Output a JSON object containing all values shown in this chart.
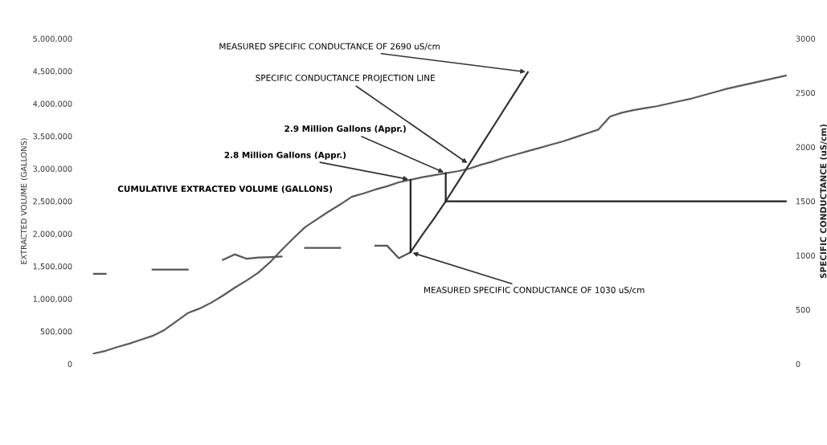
{
  "chart_data": {
    "type": "line",
    "ylabel": "EXTRACTED VOLUME (GALLONS)",
    "y2label": "SPECIFIC CONDUCTANCE (uS/cm)",
    "categories": [
      null,
      null,
      null,
      null,
      null,
      null,
      null,
      null,
      null,
      null,
      null,
      null,
      null,
      null,
      null,
      null,
      null,
      null,
      null,
      null,
      null,
      null,
      null,
      null,
      null,
      null,
      null,
      null,
      null,
      null,
      null,
      null,
      null,
      null,
      null,
      null,
      null,
      null,
      null,
      null,
      null,
      null,
      null,
      null,
      null,
      null,
      null,
      null,
      null,
      null,
      null,
      null,
      null,
      null,
      null,
      null,
      null,
      null,
      null,
      null,
      null
    ],
    "ylim": [
      0,
      5000000
    ],
    "yticks": [
      {
        "value": 0,
        "label": "0"
      },
      {
        "value": 500000,
        "label": "500,000"
      },
      {
        "value": 1000000,
        "label": "1,000,000"
      },
      {
        "value": 1500000,
        "label": "1,500,000"
      },
      {
        "value": 2000000,
        "label": "2,000,000"
      },
      {
        "value": 2500000,
        "label": "2,500,000"
      },
      {
        "value": 3000000,
        "label": "3,000,000"
      },
      {
        "value": 3500000,
        "label": "3,500,000"
      },
      {
        "value": 4000000,
        "label": "4,000,000"
      },
      {
        "value": 4500000,
        "label": "4,500,000"
      },
      {
        "value": 5000000,
        "label": "5,000,000"
      }
    ],
    "y2lim": [
      0,
      3000
    ],
    "y2ticks": [
      0,
      500,
      1000,
      1500,
      2000,
      2500,
      3000
    ],
    "grid": false,
    "legend": false,
    "series": [
      {
        "axis": "y",
        "color": "#5a5a5a",
        "values": [
          null,
          160000,
          200000,
          260000,
          310000,
          370000,
          430000,
          520000,
          650000,
          780000,
          850000,
          940000,
          1050000,
          1170000,
          1280000,
          1400000,
          1560000,
          1750000,
          1930000,
          2100000,
          2220000,
          2340000,
          2450000,
          2570000,
          2620000,
          2680000,
          2730000,
          2790000,
          2830000,
          2870000,
          2900000,
          2930000,
          2960000,
          3000000,
          3060000,
          3110000,
          3170000,
          3220000,
          3270000,
          3320000,
          3370000,
          3420000,
          3480000,
          3540000,
          3600000,
          3800000,
          3860000,
          3900000,
          3930000,
          3960000,
          4000000,
          4040000,
          4080000,
          4130000,
          4180000,
          4230000,
          4270000,
          4310000,
          4350000,
          4390000,
          4430000
        ]
      },
      {
        "axis": "y2",
        "color": "#555555",
        "values": [
          null,
          830,
          830,
          null,
          null,
          null,
          870,
          870,
          870,
          870,
          null,
          null,
          960,
          1010,
          970,
          980,
          985,
          990,
          null,
          1070,
          1070,
          1070,
          1070,
          null,
          null,
          1090,
          1090,
          975,
          1030,
          null,
          null,
          null,
          null,
          null,
          null,
          null,
          null,
          null,
          null,
          null,
          null,
          null,
          null,
          null,
          null,
          null,
          null,
          null,
          null,
          null,
          null,
          null,
          null,
          null,
          null,
          null,
          null,
          null,
          null,
          null,
          null
        ]
      },
      {
        "axis": "y2",
        "color": "#333333",
        "values": [
          null,
          null,
          null,
          null,
          null,
          null,
          null,
          null,
          null,
          null,
          null,
          null,
          null,
          null,
          null,
          null,
          null,
          null,
          null,
          null,
          null,
          null,
          null,
          null,
          null,
          null,
          null,
          null,
          1030,
          1190,
          1340,
          1500,
          1670,
          1840,
          2010,
          2180,
          2350,
          2520,
          2690,
          null,
          null,
          null,
          null,
          null,
          null,
          null,
          null,
          null,
          null,
          null,
          null,
          null,
          null,
          null,
          null,
          null,
          null,
          null,
          null,
          null,
          null
        ]
      },
      {
        "axis": "y2",
        "color": "#222222",
        "values": [
          null,
          null,
          null,
          null,
          null,
          null,
          null,
          null,
          null,
          null,
          null,
          null,
          null,
          null,
          null,
          null,
          null,
          null,
          null,
          null,
          null,
          null,
          null,
          null,
          null,
          null,
          null,
          null,
          null,
          null,
          null,
          1500,
          1500,
          1500,
          1500,
          1500,
          1500,
          1500,
          1500,
          1500,
          1500,
          1500,
          1500,
          1500,
          1500,
          1500,
          1500,
          1500,
          1500,
          1500,
          1500,
          1500,
          1500,
          1500,
          1500,
          1500,
          1500,
          1500,
          1500,
          1500,
          1500
        ]
      }
    ],
    "annotations": [
      "MEASURED SPECIFIC CONDUCTANCE OF 2690 uS/cm",
      "SPECIFIC CONDUCTANCE PROJECTION LINE",
      "2.9 Million Gallons (Appr.)",
      "2.8 Million Gallons (Appr.)",
      "CUMULATIVE EXTRACTED VOLUME (GALLONS)",
      "MEASURED SPECIFIC CONDUCTANCE OF 1030 uS/cm"
    ]
  }
}
